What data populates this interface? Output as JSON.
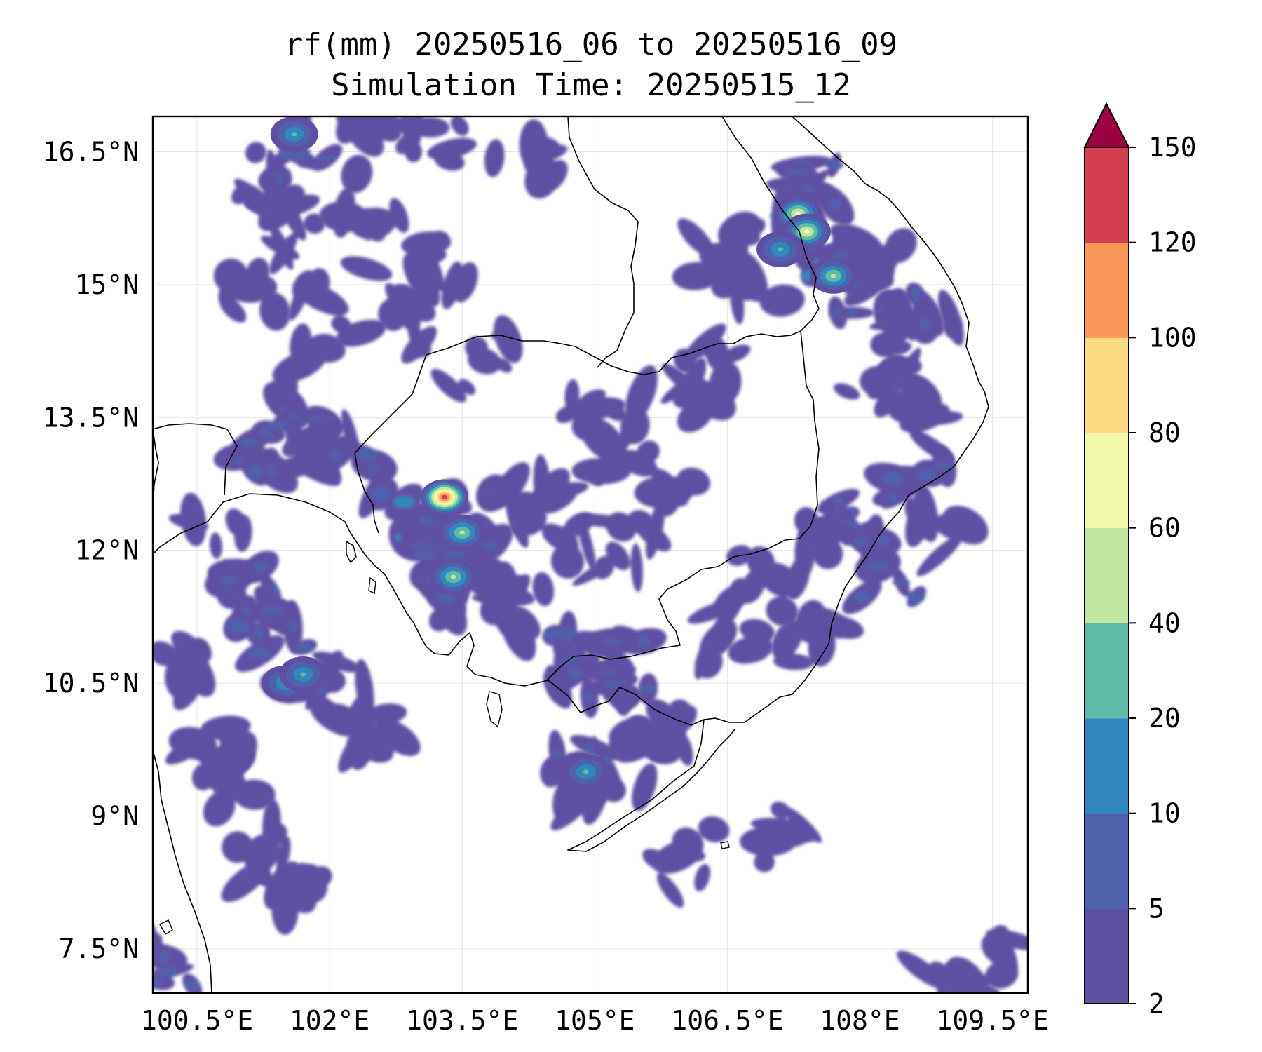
{
  "chart_data": {
    "type": "heatmap",
    "subtype": "filled-contour-map",
    "title": "rf(mm) 20250516_06 to 20250516_09",
    "subtitle": "Simulation Time: 20250515_12",
    "xlabel": "",
    "ylabel": "",
    "xlim": [
      100.0,
      109.9
    ],
    "ylim": [
      7.0,
      16.9
    ],
    "x_ticks": [
      100.5,
      102.0,
      103.5,
      105.0,
      106.5,
      108.0,
      109.5
    ],
    "x_tick_labels": [
      "100.5°E",
      "102°E",
      "103.5°E",
      "105°E",
      "106.5°E",
      "108°E",
      "109.5°E"
    ],
    "y_ticks": [
      7.5,
      9.0,
      10.5,
      12.0,
      13.5,
      15.0,
      16.5
    ],
    "y_tick_labels": [
      "7.5°N",
      "9°N",
      "10.5°N",
      "12°N",
      "13.5°N",
      "15°N",
      "16.5°N"
    ],
    "grid": true,
    "colorbar": {
      "levels": [
        2,
        5,
        10,
        20,
        40,
        60,
        80,
        100,
        120,
        150
      ],
      "tick_labels": [
        "2",
        "5",
        "10",
        "20",
        "40",
        "60",
        "80",
        "100",
        "120",
        "150"
      ],
      "colors": [
        "#5e4fa2",
        "#4f61aa",
        "#3288bd",
        "#5fbaa8",
        "#bfe5a0",
        "#f1f8a9",
        "#fbda83",
        "#f99858",
        "#d53e4f"
      ],
      "extend_color": "#9e0142",
      "extend": "max"
    },
    "rain_cells": [
      {
        "lon": 101.7,
        "lat": 16.5,
        "level": 1
      },
      {
        "lon": 101.2,
        "lat": 16.2,
        "level": 0
      },
      {
        "lon": 102.6,
        "lat": 16.6,
        "level": 0
      },
      {
        "lon": 103.2,
        "lat": 16.5,
        "level": 0
      },
      {
        "lon": 104.2,
        "lat": 16.5,
        "level": 0
      },
      {
        "lon": 101.5,
        "lat": 15.7,
        "level": 0
      },
      {
        "lon": 102.5,
        "lat": 15.5,
        "level": 0
      },
      {
        "lon": 103.3,
        "lat": 15.2,
        "level": 0
      },
      {
        "lon": 101.2,
        "lat": 15.0,
        "level": 0
      },
      {
        "lon": 102.0,
        "lat": 14.7,
        "level": 0
      },
      {
        "lon": 103.0,
        "lat": 14.6,
        "level": 0
      },
      {
        "lon": 101.8,
        "lat": 14.0,
        "level": 0
      },
      {
        "lon": 103.7,
        "lat": 14.2,
        "level": 0
      },
      {
        "lon": 101.3,
        "lat": 13.1,
        "level": 1
      },
      {
        "lon": 101.6,
        "lat": 13.4,
        "level": 1
      },
      {
        "lon": 102.3,
        "lat": 12.8,
        "level": 1
      },
      {
        "lon": 101.9,
        "lat": 13.0,
        "level": 0
      },
      {
        "lon": 103.1,
        "lat": 12.4,
        "level": 2
      },
      {
        "lon": 103.2,
        "lat": 12.1,
        "level": 1
      },
      {
        "lon": 103.4,
        "lat": 11.9,
        "level": 1
      },
      {
        "lon": 103.5,
        "lat": 12.3,
        "level": 1
      },
      {
        "lon": 103.6,
        "lat": 11.5,
        "level": 0
      },
      {
        "lon": 103.1,
        "lat": 11.7,
        "level": 1
      },
      {
        "lon": 104.4,
        "lat": 12.5,
        "level": 0
      },
      {
        "lon": 104.9,
        "lat": 13.4,
        "level": 0
      },
      {
        "lon": 105.3,
        "lat": 13.1,
        "level": 0
      },
      {
        "lon": 105.8,
        "lat": 13.6,
        "level": 0
      },
      {
        "lon": 106.3,
        "lat": 14.0,
        "level": 0
      },
      {
        "lon": 106.0,
        "lat": 12.5,
        "level": 0
      },
      {
        "lon": 105.3,
        "lat": 12.1,
        "level": 0
      },
      {
        "lon": 104.6,
        "lat": 12.0,
        "level": 0
      },
      {
        "lon": 104.2,
        "lat": 11.3,
        "level": 0
      },
      {
        "lon": 104.8,
        "lat": 10.8,
        "level": 1
      },
      {
        "lon": 105.4,
        "lat": 10.7,
        "level": 1
      },
      {
        "lon": 105.1,
        "lat": 10.3,
        "level": 1
      },
      {
        "lon": 105.7,
        "lat": 10.1,
        "level": 0
      },
      {
        "lon": 104.9,
        "lat": 9.7,
        "level": 1
      },
      {
        "lon": 104.8,
        "lat": 9.2,
        "level": 0
      },
      {
        "lon": 105.3,
        "lat": 9.6,
        "level": 0
      },
      {
        "lon": 106.5,
        "lat": 15.4,
        "level": 0
      },
      {
        "lon": 106.8,
        "lat": 15.1,
        "level": 0
      },
      {
        "lon": 107.4,
        "lat": 15.9,
        "level": 1
      },
      {
        "lon": 107.7,
        "lat": 15.4,
        "level": 2
      },
      {
        "lon": 107.9,
        "lat": 15.0,
        "level": 1
      },
      {
        "lon": 107.5,
        "lat": 16.2,
        "level": 1
      },
      {
        "lon": 108.3,
        "lat": 15.3,
        "level": 0
      },
      {
        "lon": 108.5,
        "lat": 14.8,
        "level": 1
      },
      {
        "lon": 108.7,
        "lat": 14.3,
        "level": 0
      },
      {
        "lon": 108.2,
        "lat": 14.0,
        "level": 0
      },
      {
        "lon": 108.7,
        "lat": 13.5,
        "level": 0
      },
      {
        "lon": 108.6,
        "lat": 12.7,
        "level": 1
      },
      {
        "lon": 107.8,
        "lat": 12.3,
        "level": 1
      },
      {
        "lon": 107.3,
        "lat": 12.0,
        "level": 0
      },
      {
        "lon": 108.3,
        "lat": 11.8,
        "level": 1
      },
      {
        "lon": 108.9,
        "lat": 12.2,
        "level": 0
      },
      {
        "lon": 106.8,
        "lat": 11.6,
        "level": 0
      },
      {
        "lon": 107.5,
        "lat": 11.0,
        "level": 0
      },
      {
        "lon": 106.5,
        "lat": 11.0,
        "level": 0
      },
      {
        "lon": 100.7,
        "lat": 12.0,
        "level": 0
      },
      {
        "lon": 101.0,
        "lat": 11.5,
        "level": 1
      },
      {
        "lon": 101.3,
        "lat": 11.1,
        "level": 1
      },
      {
        "lon": 101.8,
        "lat": 10.6,
        "level": 1
      },
      {
        "lon": 102.3,
        "lat": 10.3,
        "level": 0
      },
      {
        "lon": 102.6,
        "lat": 10.0,
        "level": 0
      },
      {
        "lon": 100.3,
        "lat": 10.7,
        "level": 0
      },
      {
        "lon": 100.6,
        "lat": 10.0,
        "level": 0
      },
      {
        "lon": 100.9,
        "lat": 9.3,
        "level": 0
      },
      {
        "lon": 101.2,
        "lat": 8.6,
        "level": 0
      },
      {
        "lon": 101.7,
        "lat": 8.0,
        "level": 0
      },
      {
        "lon": 100.1,
        "lat": 7.4,
        "level": 1
      },
      {
        "lon": 106.0,
        "lat": 8.5,
        "level": 0
      },
      {
        "lon": 107.2,
        "lat": 8.8,
        "level": 0
      },
      {
        "lon": 109.0,
        "lat": 7.2,
        "level": 0
      },
      {
        "lon": 109.5,
        "lat": 7.3,
        "level": 0
      }
    ],
    "peaks": [
      {
        "lon": 103.3,
        "lat": 12.6,
        "value": 120
      },
      {
        "lon": 107.3,
        "lat": 15.8,
        "value": 70
      },
      {
        "lon": 107.4,
        "lat": 15.6,
        "value": 60
      },
      {
        "lon": 107.7,
        "lat": 15.1,
        "value": 50
      },
      {
        "lon": 103.5,
        "lat": 12.2,
        "value": 45
      },
      {
        "lon": 103.4,
        "lat": 11.7,
        "value": 40
      },
      {
        "lon": 101.6,
        "lat": 16.7,
        "value": 35
      },
      {
        "lon": 101.5,
        "lat": 10.5,
        "value": 30
      },
      {
        "lon": 101.7,
        "lat": 10.6,
        "value": 30
      },
      {
        "lon": 104.9,
        "lat": 9.5,
        "value": 30
      },
      {
        "lon": 107.1,
        "lat": 15.4,
        "value": 30
      }
    ]
  }
}
